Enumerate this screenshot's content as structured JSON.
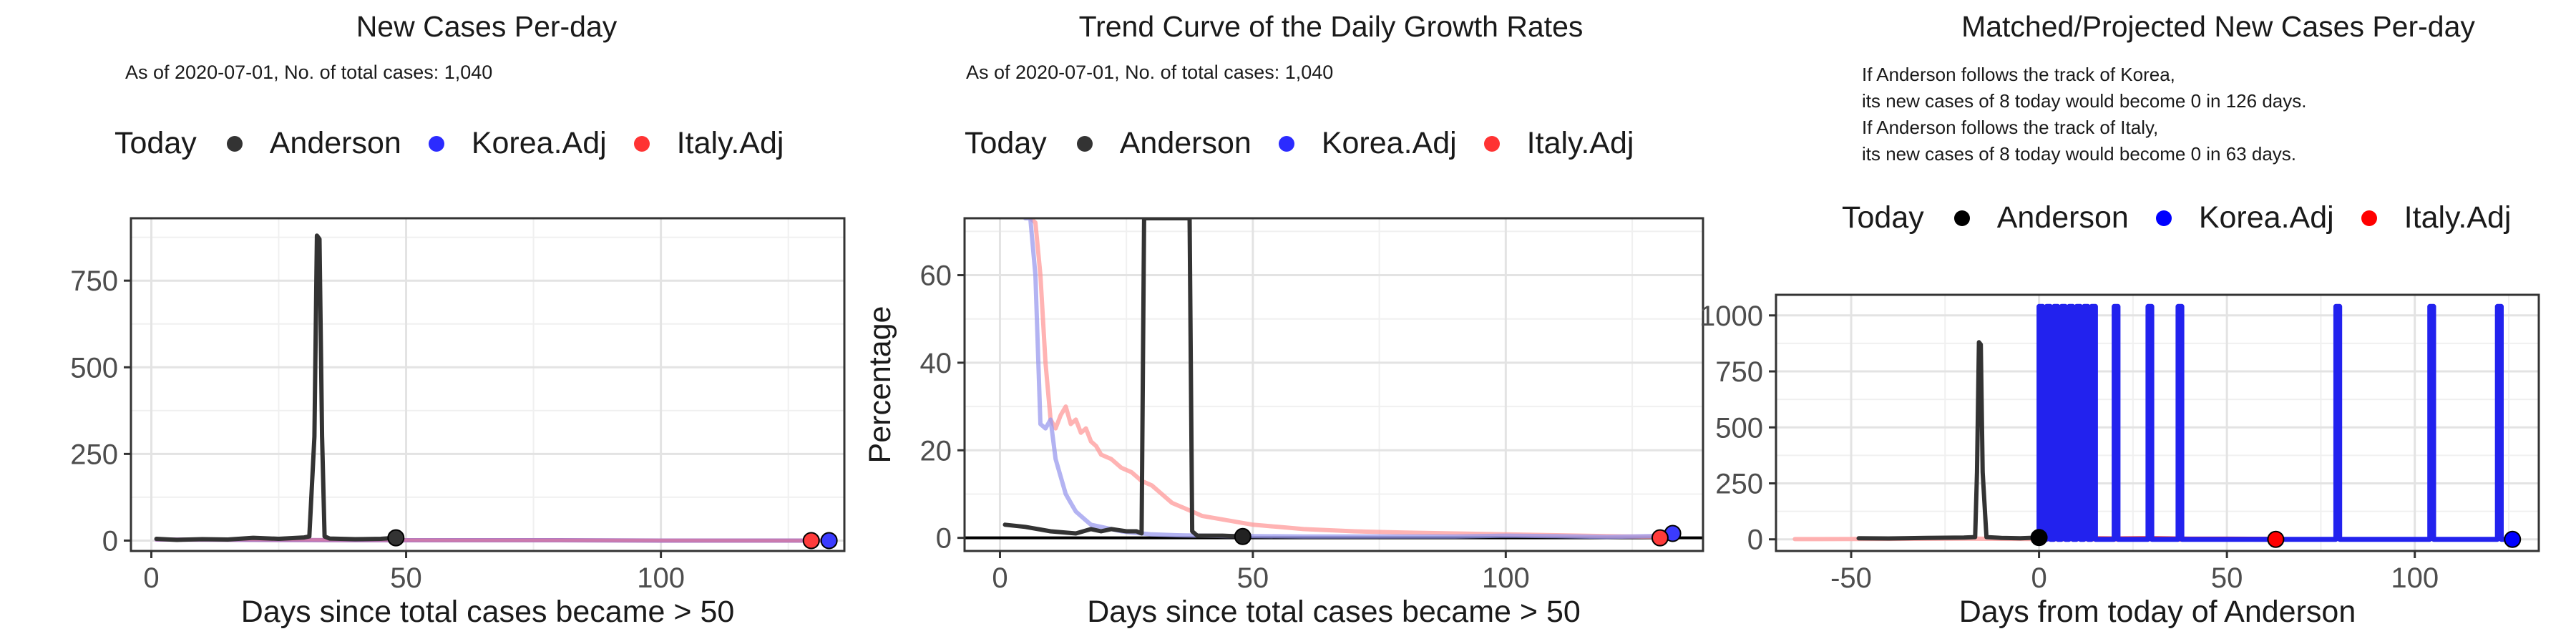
{
  "panels": [
    {
      "title": "New Cases Per-day",
      "subtitle": "As of 2020-07-01, No. of total cases: 1,040",
      "legend": {
        "title": "Today",
        "items": [
          {
            "label": "Anderson",
            "color": "#333333"
          },
          {
            "label": "Korea.Adj",
            "color": "#2b2bff"
          },
          {
            "label": "Italy.Adj",
            "color": "#ff3333"
          }
        ]
      }
    },
    {
      "title": "Trend Curve of the Daily Growth Rates",
      "subtitle": "As of 2020-07-01, No. of total cases: 1,040",
      "legend": {
        "title": "Today",
        "items": [
          {
            "label": "Anderson",
            "color": "#333333"
          },
          {
            "label": "Korea.Adj",
            "color": "#2b2bff"
          },
          {
            "label": "Italy.Adj",
            "color": "#ff3333"
          }
        ]
      }
    },
    {
      "title": "Matched/Projected New Cases Per-day",
      "notes": [
        "If Anderson follows the track of Korea,",
        "its new cases of 8 today would become 0 in 126 days.",
        "If Anderson follows the track of Italy,",
        "its new cases of 8 today would become 0 in 63 days."
      ],
      "legend": {
        "title": "Today",
        "items": [
          {
            "label": "Anderson",
            "color": "#000000"
          },
          {
            "label": "Korea.Adj",
            "color": "#0000ff"
          },
          {
            "label": "Italy.Adj",
            "color": "#ff0000"
          }
        ]
      }
    }
  ],
  "chart_data": [
    {
      "type": "line",
      "title": "New Cases Per-day",
      "xlabel": "Days since total cases became > 50",
      "ylabel": "",
      "xlim": [
        -4,
        136
      ],
      "ylim": [
        -30,
        930
      ],
      "xticks": [
        0,
        50,
        100
      ],
      "xtick_labels": [
        "0",
        "50",
        "100"
      ],
      "yticks": [
        0,
        250,
        500,
        750
      ],
      "ytick_labels": [
        "0",
        "250",
        "500",
        "750"
      ],
      "grid": true,
      "series": [
        {
          "name": "Korea.Adj",
          "color": "#b07ac0",
          "width": 6,
          "x": [
            1,
            20,
            40,
            60,
            80,
            100,
            120,
            133
          ],
          "y": [
            3,
            2,
            1,
            1,
            1,
            0,
            0,
            0
          ]
        },
        {
          "name": "Italy.Adj",
          "color": "#e07aa0",
          "width": 4,
          "opacity": 0.6,
          "x": [
            1,
            20,
            40,
            60,
            80,
            100,
            120,
            130
          ],
          "y": [
            4,
            3,
            2,
            1,
            1,
            1,
            0,
            0
          ]
        },
        {
          "name": "Anderson",
          "color": "#333333",
          "width": 6,
          "x": [
            1,
            5,
            10,
            15,
            20,
            25,
            30,
            31,
            32,
            32.5,
            33,
            33.5,
            34,
            35,
            40,
            45,
            48
          ],
          "y": [
            5,
            2,
            4,
            3,
            8,
            5,
            9,
            12,
            300,
            880,
            870,
            300,
            12,
            6,
            4,
            5,
            8
          ]
        }
      ],
      "points": [
        {
          "name": "Anderson",
          "x": 48,
          "y": 8,
          "color": "#333333"
        },
        {
          "name": "Korea.Adj",
          "x": 133,
          "y": 0,
          "color": "#3b3bff"
        },
        {
          "name": "Italy.Adj",
          "x": 129.5,
          "y": 0,
          "color": "#ff3b3b"
        }
      ]
    },
    {
      "type": "line",
      "title": "Trend Curve of the Daily Growth Rates",
      "xlabel": "Days since total cases became > 50",
      "ylabel": "Percentage",
      "xlim": [
        -7,
        139
      ],
      "ylim": [
        -3,
        73
      ],
      "xticks": [
        0,
        50,
        100
      ],
      "xtick_labels": [
        "0",
        "50",
        "100"
      ],
      "yticks": [
        0,
        20,
        40,
        60
      ],
      "ytick_labels": [
        "0",
        "20",
        "40",
        "60"
      ],
      "grid": true,
      "hline": 0,
      "series": [
        {
          "name": "Italy.Adj",
          "color": "#ff9a9a",
          "width": 6,
          "opacity": 0.75,
          "x": [
            6,
            7,
            8,
            9,
            10,
            11,
            12,
            13,
            14,
            15,
            16,
            17,
            18,
            19,
            20,
            22,
            24,
            26,
            28,
            30,
            32,
            34,
            36,
            38,
            40,
            45,
            50,
            55,
            60,
            70,
            80,
            90,
            100,
            110,
            120,
            131
          ],
          "y": [
            73,
            72,
            60,
            40,
            27,
            25,
            28,
            30,
            26,
            27,
            24,
            25,
            22,
            21,
            19,
            18,
            16,
            15,
            13,
            12,
            10,
            8,
            7,
            6,
            5,
            4,
            3,
            2.5,
            2,
            1.5,
            1.2,
            1,
            0.8,
            0.6,
            0.4,
            0.2
          ]
        },
        {
          "name": "Korea.Adj",
          "color": "#9a9aee",
          "width": 6,
          "opacity": 0.75,
          "x": [
            5,
            6,
            7,
            8,
            9,
            10,
            11,
            12,
            13,
            14,
            15,
            16,
            17,
            18,
            20,
            22,
            24,
            26,
            28,
            30,
            35,
            40,
            45,
            50,
            60,
            70,
            80,
            90,
            100,
            110,
            120,
            133
          ],
          "y": [
            73,
            73,
            60,
            26,
            25,
            27,
            18,
            14,
            10,
            8,
            6,
            5,
            4,
            3,
            2.5,
            2,
            1.5,
            1.2,
            1,
            0.8,
            0.6,
            0.5,
            0.4,
            0.4,
            0.3,
            0.3,
            0.3,
            0.3,
            0.5,
            0.4,
            0.2,
            0.5
          ]
        },
        {
          "name": "Anderson",
          "color": "#333333",
          "width": 6,
          "x": [
            1,
            5,
            10,
            15,
            18,
            20,
            22,
            25,
            27,
            28,
            28.5,
            29,
            37,
            37.5,
            38,
            39,
            41,
            44,
            48
          ],
          "y": [
            3,
            2.5,
            1.5,
            1,
            2,
            1.5,
            2,
            1.5,
            1.5,
            1,
            73,
            73,
            73,
            73,
            1.5,
            0.5,
            0.5,
            0.5,
            0.3
          ]
        }
      ],
      "points": [
        {
          "name": "Anderson",
          "x": 48,
          "y": 0.3,
          "color": "#222222"
        },
        {
          "name": "Korea.Adj",
          "x": 133,
          "y": 1,
          "color": "#3b3bff"
        },
        {
          "name": "Italy.Adj",
          "x": 130.5,
          "y": 0,
          "color": "#ff3b3b"
        }
      ]
    },
    {
      "type": "line",
      "title": "Matched/Projected New Cases Per-day",
      "xlabel": "Days from today of Anderson",
      "ylabel": "",
      "xlim": [
        -70,
        133
      ],
      "ylim": [
        -52,
        1092
      ],
      "xticks": [
        -50,
        0,
        50,
        100
      ],
      "xtick_labels": [
        "-50",
        "0",
        "50",
        "100"
      ],
      "yticks": [
        0,
        250,
        500,
        750,
        1000
      ],
      "ytick_labels": [
        "0",
        "250",
        "500",
        "750",
        "1000"
      ],
      "grid": true,
      "series": [
        {
          "name": "Italy.Adj",
          "color": "#ffaaaa",
          "width": 6,
          "opacity": 0.9,
          "x": [
            -65,
            -40,
            -20,
            -5,
            0
          ],
          "y": [
            1,
            2,
            3,
            2,
            1
          ]
        },
        {
          "name": "Italy.Adj",
          "color": "#ee2222",
          "width": 7,
          "x": [
            0,
            10,
            20,
            30,
            40,
            50,
            63
          ],
          "y": [
            2,
            3,
            2,
            3,
            1,
            1,
            0
          ]
        },
        {
          "name": "Korea.Adj",
          "color": "#2222ee",
          "width": 7,
          "x": [
            0,
            0,
            1,
            1,
            2,
            2,
            3,
            3,
            4,
            4,
            5,
            5,
            6,
            6,
            7,
            7,
            8,
            8,
            9,
            9,
            10,
            10,
            11,
            11,
            12,
            12,
            13,
            13,
            14,
            14,
            15,
            15,
            16,
            16,
            20,
            20,
            21,
            21,
            22,
            29,
            29,
            30,
            30,
            31,
            37,
            37,
            38,
            38,
            39,
            79,
            79,
            80,
            80,
            81,
            104,
            104,
            105,
            105,
            106,
            122,
            122,
            123,
            123,
            126
          ],
          "y": [
            0,
            1040,
            1040,
            0,
            0,
            1040,
            1040,
            0,
            0,
            1040,
            1040,
            0,
            0,
            1040,
            1040,
            0,
            0,
            1040,
            1040,
            0,
            0,
            1040,
            1040,
            0,
            0,
            1040,
            1040,
            0,
            0,
            1040,
            1040,
            0,
            0,
            0,
            0,
            1040,
            1040,
            0,
            0,
            0,
            1040,
            1040,
            0,
            0,
            0,
            1040,
            1040,
            0,
            0,
            0,
            1040,
            1040,
            0,
            0,
            0,
            1040,
            1040,
            0,
            0,
            0,
            1040,
            1040,
            0,
            0
          ]
        },
        {
          "name": "Anderson",
          "color": "#333333",
          "width": 6,
          "x": [
            -48,
            -40,
            -30,
            -20,
            -17,
            -16.5,
            -16,
            -15.5,
            -15,
            -14,
            -10,
            -5,
            0
          ],
          "y": [
            5,
            4,
            6,
            8,
            10,
            300,
            880,
            870,
            300,
            10,
            6,
            5,
            8
          ]
        }
      ],
      "points": [
        {
          "name": "Anderson",
          "x": 0,
          "y": 8,
          "color": "#000000"
        },
        {
          "name": "Korea.Adj",
          "x": 126,
          "y": 0,
          "color": "#0000ff"
        },
        {
          "name": "Italy.Adj",
          "x": 63,
          "y": 0,
          "color": "#ff0000"
        }
      ]
    }
  ]
}
